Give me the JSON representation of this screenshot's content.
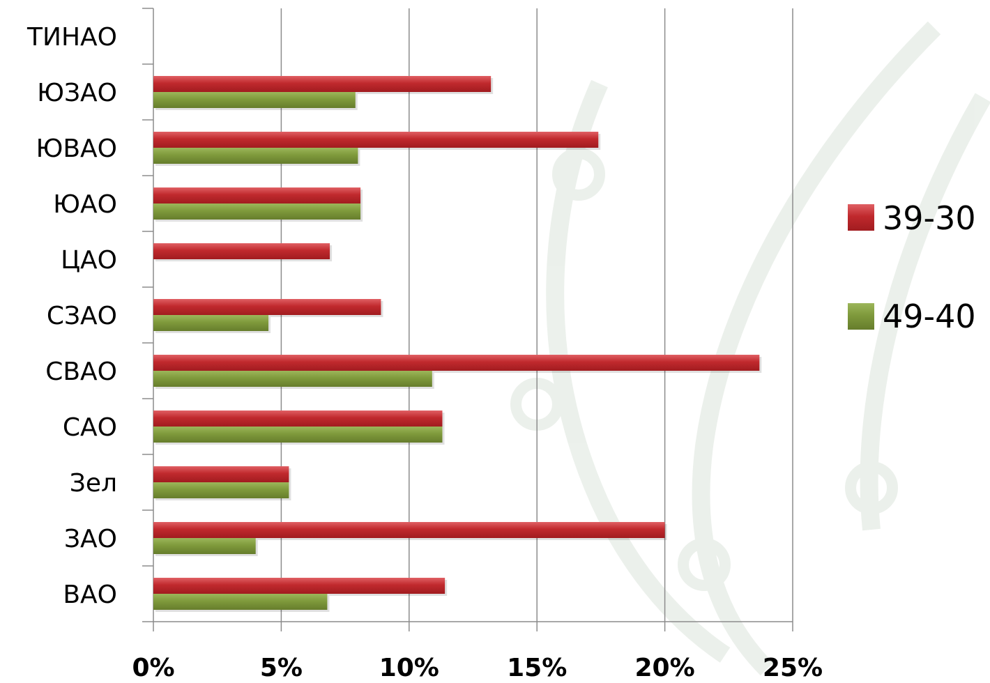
{
  "chart_data": {
    "type": "bar",
    "orientation": "horizontal",
    "categories": [
      "ТИНАО",
      "ЮЗАО",
      "ЮВАО",
      "ЮАО",
      "ЦАО",
      "СЗАО",
      "СВАО",
      "САО",
      "Зел",
      "ЗАО",
      "ВАО"
    ],
    "series": [
      {
        "name": "39-30",
        "color": "#c0292d",
        "values": [
          0,
          13.2,
          17.4,
          8.1,
          6.9,
          8.9,
          23.7,
          11.3,
          5.3,
          20.0,
          11.4
        ]
      },
      {
        "name": "49-40",
        "color": "#7f9a3c",
        "values": [
          0,
          7.9,
          8.0,
          8.1,
          0,
          4.5,
          10.9,
          11.3,
          5.3,
          4.0,
          6.8
        ]
      }
    ],
    "xlim": [
      0,
      25
    ],
    "x_ticks": [
      "0%",
      "5%",
      "10%",
      "15%",
      "20%",
      "25%"
    ],
    "x_tick_values": [
      0,
      5,
      10,
      15,
      20,
      25
    ],
    "grid": "vertical",
    "legend": "right",
    "title": "",
    "xlabel": "",
    "ylabel": ""
  }
}
